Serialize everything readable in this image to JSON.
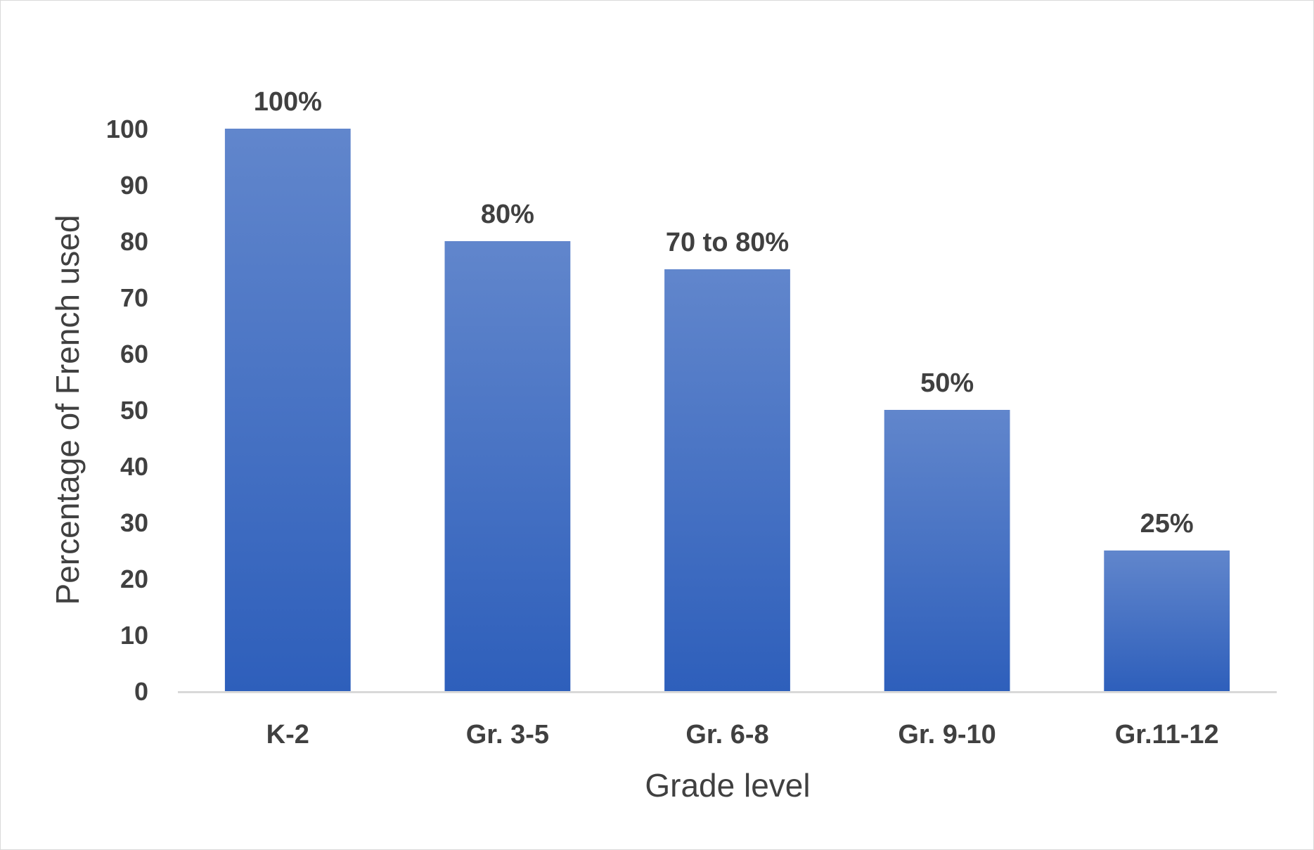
{
  "chart_data": {
    "type": "bar",
    "categories": [
      "K-2",
      "Gr. 3-5",
      "Gr. 6-8",
      "Gr. 9-10",
      "Gr.11-12"
    ],
    "values": [
      100,
      80,
      75,
      50,
      25
    ],
    "data_labels": [
      "100%",
      "80%",
      "70 to 80%",
      "50%",
      "25%"
    ],
    "xlabel": "Grade level",
    "ylabel": "Percentage of French used",
    "ylim": [
      0,
      100
    ],
    "yticks": [
      0,
      10,
      20,
      30,
      40,
      50,
      60,
      70,
      80,
      90,
      100
    ],
    "grid": false,
    "legend": "none",
    "bar_color_top": "#6186cc",
    "bar_color_bottom": "#2e5fbb",
    "axis_color": "#d9d9d9",
    "text_color": "#404040"
  }
}
